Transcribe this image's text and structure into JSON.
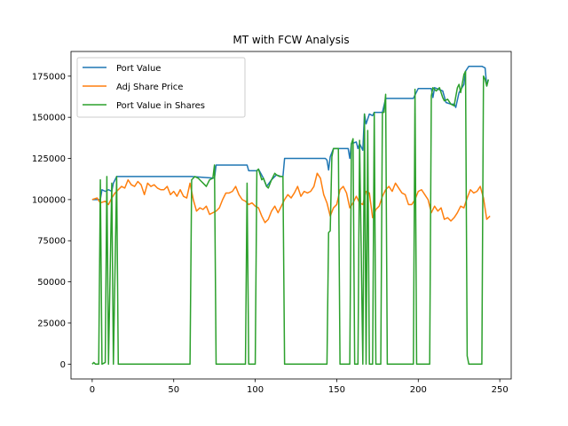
{
  "chart_data": {
    "type": "line",
    "title": "MT with FCW Analysis",
    "xlabel": "",
    "ylabel": "",
    "xlim": [
      -13,
      257
    ],
    "ylim": [
      -9000,
      190000
    ],
    "xticks": [
      0,
      50,
      100,
      150,
      200,
      250
    ],
    "yticks": [
      0,
      25000,
      50000,
      75000,
      100000,
      125000,
      150000,
      175000
    ],
    "ytick_labels": [
      "0",
      "25000",
      "50000",
      "75000",
      "100000",
      "125000",
      "150000",
      "175000"
    ],
    "grid": false,
    "legend_position": "upper-left",
    "series": [
      {
        "name": "Port Value",
        "color": "#1f77b4",
        "points": [
          [
            0,
            100000
          ],
          [
            5,
            100000
          ],
          [
            6,
            106000
          ],
          [
            8,
            105000
          ],
          [
            10,
            106000
          ],
          [
            12,
            105000
          ],
          [
            13,
            110000
          ],
          [
            15,
            114000
          ],
          [
            60,
            114000
          ],
          [
            61,
            114000
          ],
          [
            75,
            113000
          ],
          [
            76,
            121000
          ],
          [
            95,
            121000
          ],
          [
            96,
            117500
          ],
          [
            101,
            117500
          ],
          [
            102,
            118500
          ],
          [
            105,
            113000
          ],
          [
            107,
            108000
          ],
          [
            110,
            112000
          ],
          [
            113,
            115000
          ],
          [
            116,
            114000
          ],
          [
            117,
            114000
          ],
          [
            118,
            125000
          ],
          [
            143,
            125000
          ],
          [
            144,
            124000
          ],
          [
            145,
            118000
          ],
          [
            146,
            126000
          ],
          [
            148,
            131000
          ],
          [
            157,
            131000
          ],
          [
            158,
            125000
          ],
          [
            159,
            134000
          ],
          [
            162,
            135000
          ],
          [
            163,
            131000
          ],
          [
            164,
            134000
          ],
          [
            166,
            130000
          ],
          [
            167,
            152000
          ],
          [
            168,
            146000
          ],
          [
            170,
            152000
          ],
          [
            172,
            151000
          ],
          [
            173,
            153000
          ],
          [
            178,
            153000
          ],
          [
            180,
            161500
          ],
          [
            197,
            161500
          ],
          [
            200,
            167500
          ],
          [
            208,
            167500
          ],
          [
            209,
            162000
          ],
          [
            210,
            168000
          ],
          [
            215,
            166000
          ],
          [
            217,
            159000
          ],
          [
            220,
            158000
          ],
          [
            222,
            158000
          ],
          [
            223,
            156000
          ],
          [
            225,
            165000
          ],
          [
            228,
            170000
          ],
          [
            229,
            178000
          ],
          [
            231,
            181000
          ],
          [
            239,
            181000
          ],
          [
            241,
            180000
          ],
          [
            242,
            169000
          ],
          [
            243,
            173000
          ]
        ]
      },
      {
        "name": "Adj Share Price",
        "color": "#ff7f0e",
        "points": [
          [
            0,
            100000
          ],
          [
            3,
            101000
          ],
          [
            5,
            98000
          ],
          [
            8,
            99000
          ],
          [
            10,
            97000
          ],
          [
            12,
            101000
          ],
          [
            14,
            104000
          ],
          [
            16,
            106000
          ],
          [
            18,
            108000
          ],
          [
            20,
            107000
          ],
          [
            22,
            112000
          ],
          [
            24,
            109000
          ],
          [
            26,
            108000
          ],
          [
            28,
            111000
          ],
          [
            30,
            109000
          ],
          [
            32,
            103000
          ],
          [
            34,
            110000
          ],
          [
            36,
            108000
          ],
          [
            38,
            109000
          ],
          [
            40,
            107000
          ],
          [
            42,
            106000
          ],
          [
            44,
            106000
          ],
          [
            46,
            108000
          ],
          [
            48,
            103000
          ],
          [
            50,
            105000
          ],
          [
            52,
            102000
          ],
          [
            54,
            106000
          ],
          [
            56,
            102000
          ],
          [
            58,
            101000
          ],
          [
            60,
            110000
          ],
          [
            62,
            100000
          ],
          [
            64,
            93000
          ],
          [
            66,
            95000
          ],
          [
            68,
            94000
          ],
          [
            70,
            96000
          ],
          [
            72,
            91000
          ],
          [
            74,
            92000
          ],
          [
            76,
            93000
          ],
          [
            78,
            95000
          ],
          [
            80,
            100000
          ],
          [
            82,
            104000
          ],
          [
            84,
            104000
          ],
          [
            86,
            105000
          ],
          [
            88,
            108000
          ],
          [
            90,
            103000
          ],
          [
            92,
            100000
          ],
          [
            94,
            99000
          ],
          [
            96,
            97000
          ],
          [
            98,
            98000
          ],
          [
            100,
            96000
          ],
          [
            102,
            95000
          ],
          [
            104,
            90000
          ],
          [
            106,
            86000
          ],
          [
            108,
            88000
          ],
          [
            110,
            93000
          ],
          [
            112,
            96000
          ],
          [
            114,
            92000
          ],
          [
            116,
            96000
          ],
          [
            118,
            100000
          ],
          [
            120,
            103000
          ],
          [
            122,
            101000
          ],
          [
            124,
            104000
          ],
          [
            126,
            108000
          ],
          [
            128,
            102000
          ],
          [
            130,
            105000
          ],
          [
            132,
            104000
          ],
          [
            134,
            105000
          ],
          [
            136,
            108000
          ],
          [
            138,
            116000
          ],
          [
            140,
            113000
          ],
          [
            142,
            103000
          ],
          [
            144,
            98000
          ],
          [
            146,
            90000
          ],
          [
            148,
            95000
          ],
          [
            150,
            97000
          ],
          [
            152,
            106000
          ],
          [
            154,
            108000
          ],
          [
            156,
            104000
          ],
          [
            158,
            95000
          ],
          [
            160,
            98000
          ],
          [
            162,
            102000
          ],
          [
            164,
            98000
          ],
          [
            166,
            97000
          ],
          [
            168,
            105000
          ],
          [
            170,
            104000
          ],
          [
            172,
            89000
          ],
          [
            174,
            94000
          ],
          [
            176,
            96000
          ],
          [
            178,
            102000
          ],
          [
            180,
            106000
          ],
          [
            182,
            108000
          ],
          [
            184,
            105000
          ],
          [
            186,
            110000
          ],
          [
            188,
            107000
          ],
          [
            190,
            104000
          ],
          [
            192,
            103000
          ],
          [
            194,
            97000
          ],
          [
            196,
            97000
          ],
          [
            198,
            100000
          ],
          [
            200,
            105000
          ],
          [
            202,
            106000
          ],
          [
            204,
            103000
          ],
          [
            206,
            100000
          ],
          [
            208,
            92000
          ],
          [
            210,
            96000
          ],
          [
            212,
            93000
          ],
          [
            214,
            95000
          ],
          [
            216,
            88000
          ],
          [
            218,
            89000
          ],
          [
            220,
            87000
          ],
          [
            222,
            89000
          ],
          [
            224,
            92000
          ],
          [
            226,
            96000
          ],
          [
            228,
            95000
          ],
          [
            230,
            101000
          ],
          [
            232,
            106000
          ],
          [
            234,
            104000
          ],
          [
            236,
            105000
          ],
          [
            238,
            108000
          ],
          [
            240,
            101000
          ],
          [
            242,
            88000
          ],
          [
            244,
            90000
          ]
        ]
      },
      {
        "name": "Port Value in Shares",
        "color": "#2ca02c",
        "points": [
          [
            0,
            0
          ],
          [
            1,
            1000
          ],
          [
            2,
            0
          ],
          [
            4,
            0
          ],
          [
            5,
            112000
          ],
          [
            6,
            0
          ],
          [
            8,
            1000
          ],
          [
            9,
            114000
          ],
          [
            10,
            0
          ],
          [
            12,
            110000
          ],
          [
            13,
            0
          ],
          [
            15,
            114000
          ],
          [
            16,
            0
          ],
          [
            60,
            0
          ],
          [
            61,
            112000
          ],
          [
            62,
            113000
          ],
          [
            63,
            114000
          ],
          [
            65,
            113000
          ],
          [
            67,
            111000
          ],
          [
            68,
            110000
          ],
          [
            70,
            108000
          ],
          [
            71,
            110000
          ],
          [
            72,
            112000
          ],
          [
            74,
            113000
          ],
          [
            75,
            121000
          ],
          [
            76,
            0
          ],
          [
            94,
            0
          ],
          [
            95,
            110000
          ],
          [
            96,
            0
          ],
          [
            100,
            0
          ],
          [
            101,
            117500
          ],
          [
            102,
            118500
          ],
          [
            104,
            112000
          ],
          [
            105,
            113000
          ],
          [
            107,
            108000
          ],
          [
            108,
            107000
          ],
          [
            110,
            112000
          ],
          [
            112,
            116000
          ],
          [
            113,
            115000
          ],
          [
            115,
            114000
          ],
          [
            117,
            114000
          ],
          [
            118,
            0
          ],
          [
            144,
            0
          ],
          [
            145,
            80000
          ],
          [
            146,
            81000
          ],
          [
            147,
            126000
          ],
          [
            148,
            131000
          ],
          [
            151,
            131000
          ],
          [
            152,
            0
          ],
          [
            158,
            0
          ],
          [
            159,
            134000
          ],
          [
            160,
            137000
          ],
          [
            161,
            0
          ],
          [
            163,
            0
          ],
          [
            164,
            136000
          ],
          [
            166,
            0
          ],
          [
            167,
            152000
          ],
          [
            168,
            0
          ],
          [
            169,
            142000
          ],
          [
            170,
            0
          ],
          [
            172,
            0
          ],
          [
            173,
            153000
          ],
          [
            174,
            0
          ],
          [
            177,
            0
          ],
          [
            178,
            153000
          ],
          [
            179,
            153000
          ],
          [
            180,
            164000
          ],
          [
            181,
            0
          ],
          [
            197,
            0
          ],
          [
            198,
            167000
          ],
          [
            199,
            0
          ],
          [
            207,
            0
          ],
          [
            208,
            163000
          ],
          [
            209,
            168000
          ],
          [
            211,
            166000
          ],
          [
            213,
            168000
          ],
          [
            215,
            162000
          ],
          [
            216,
            160000
          ],
          [
            218,
            161000
          ],
          [
            220,
            158000
          ],
          [
            222,
            157000
          ],
          [
            224,
            168000
          ],
          [
            225,
            170000
          ],
          [
            226,
            165000
          ],
          [
            228,
            176000
          ],
          [
            229,
            178000
          ],
          [
            230,
            5000
          ],
          [
            231,
            0
          ],
          [
            239,
            0
          ],
          [
            240,
            175000
          ],
          [
            241,
            173000
          ],
          [
            242,
            169000
          ],
          [
            243,
            173000
          ]
        ]
      }
    ]
  }
}
